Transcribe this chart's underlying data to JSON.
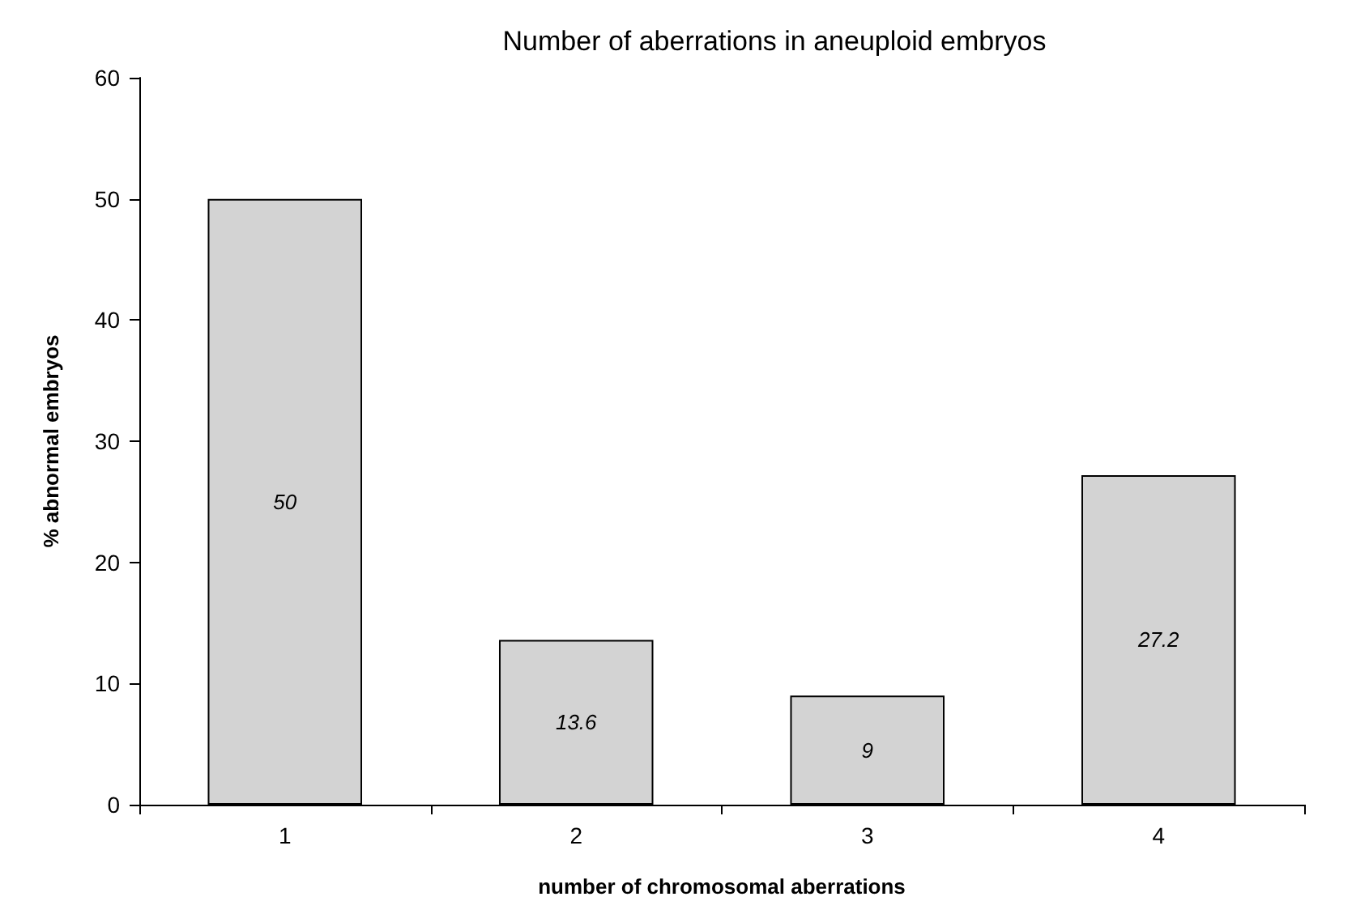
{
  "chart_data": {
    "type": "bar",
    "title": "Number of aberrations in aneuploid embryos",
    "xlabel": "number of chromosomal aberrations",
    "ylabel": "% abnormal embryos",
    "categories": [
      "1",
      "2",
      "3",
      "4"
    ],
    "values": [
      50,
      13.6,
      9,
      27.2
    ],
    "color": "#d3d3d3",
    "ylim": [
      0,
      60
    ],
    "yticks": [
      0,
      10,
      20,
      30,
      40,
      50,
      60
    ],
    "grid": false,
    "data_labels": true
  }
}
